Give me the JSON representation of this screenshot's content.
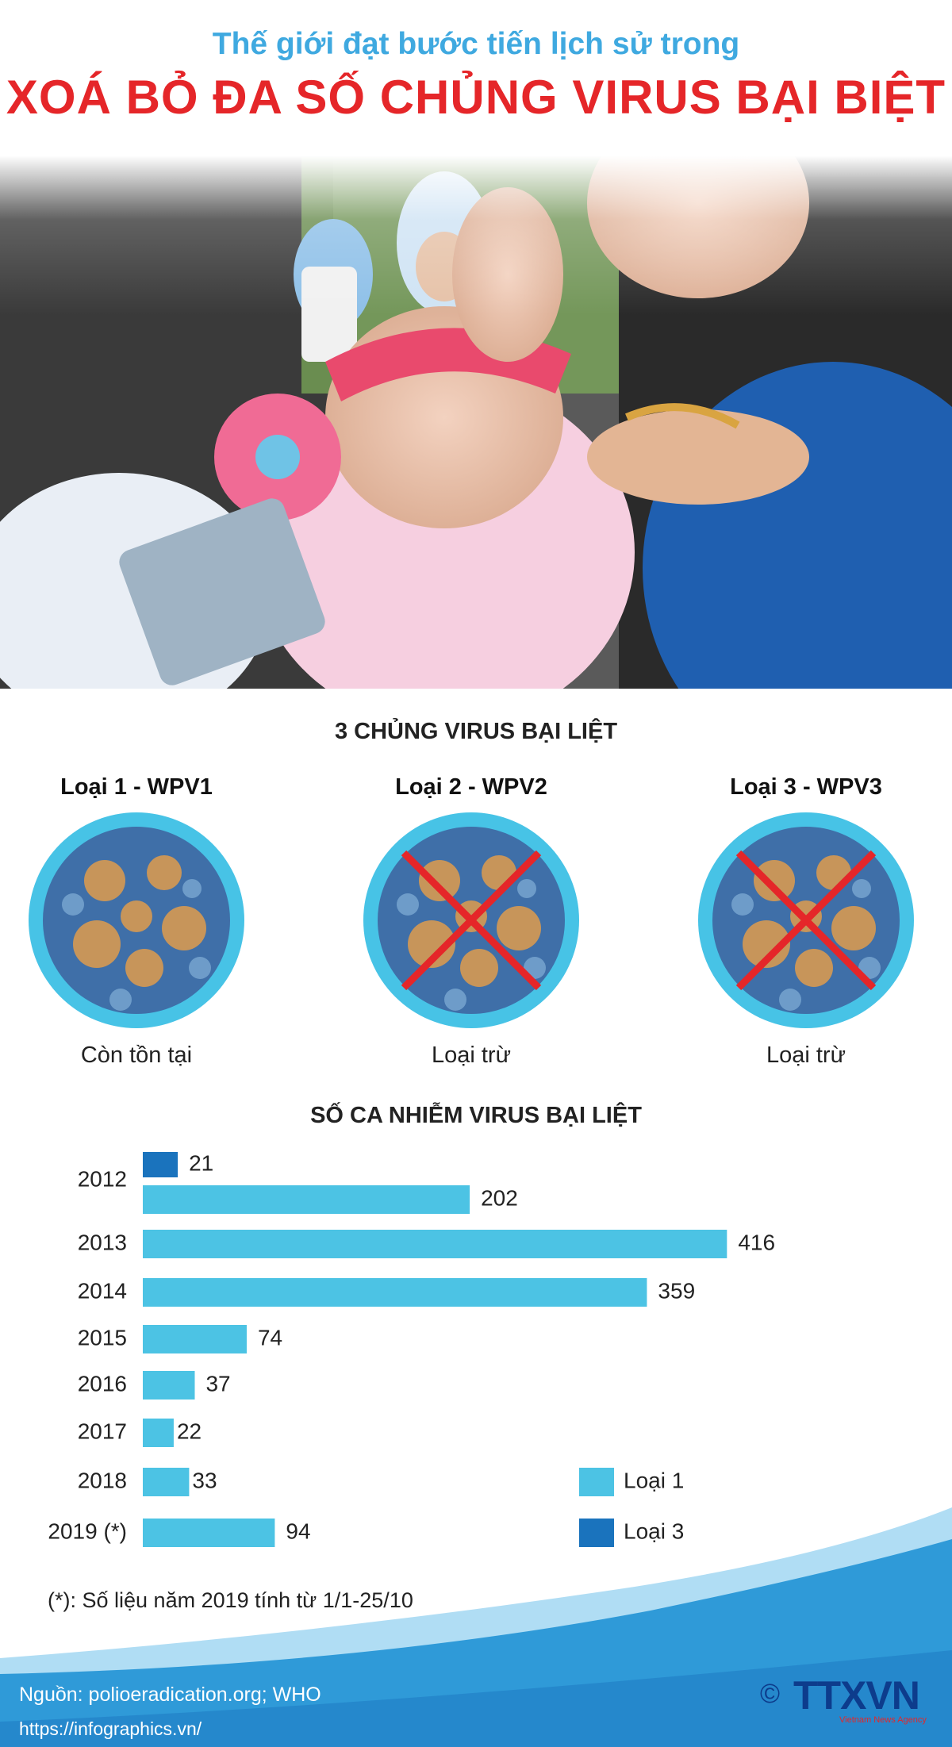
{
  "header": {
    "subtitle": "Thế giới đạt bước tiến lịch sử trong",
    "title": "XOÁ BỎ ĐA SỐ CHỦNG VIRUS BẠI BIỆT"
  },
  "strains": {
    "heading": "3 CHỦNG VIRUS BẠI LIỆT",
    "items": [
      {
        "name": "Loại 1 - WPV1",
        "status": "Còn tồn tại",
        "crossed": false
      },
      {
        "name": "Loại 2 - WPV2",
        "status": "Loại trừ",
        "crossed": true
      },
      {
        "name": "Loại 3 - WPV3",
        "status": "Loại trừ",
        "crossed": true
      }
    ]
  },
  "chart_data": {
    "type": "bar",
    "orientation": "horizontal",
    "title": "SỐ CA NHIỄM VIRUS BẠI LIỆT",
    "categories": [
      "2012",
      "2013",
      "2014",
      "2015",
      "2016",
      "2017",
      "2018",
      "2019 (*)"
    ],
    "series": [
      {
        "name": "Loại 3",
        "color": "#1a73bd",
        "values": [
          21,
          null,
          null,
          null,
          null,
          null,
          null,
          null
        ]
      },
      {
        "name": "Loại 1",
        "color": "#4cc3e4",
        "values": [
          202,
          416,
          359,
          74,
          37,
          22,
          33,
          94
        ]
      }
    ],
    "legend": {
      "position": "bottom-right",
      "items": [
        "Loại 1",
        "Loại 3"
      ]
    },
    "grid": false
  },
  "footnote": "(*): Số liệu năm 2019 tính từ 1/1-25/10",
  "footer": {
    "source": "Nguồn: polioeradication.org; WHO",
    "url": "https://infographics.vn/",
    "logo_text": "TTXVN",
    "logo_sub": "Vietnam News Agency",
    "copyright": "©"
  },
  "colors": {
    "accent_blue": "#3fa9e0",
    "title_red": "#e52629",
    "bar_light": "#4cc3e4",
    "bar_dark": "#1a73bd",
    "wave": "#2f9ad8"
  }
}
